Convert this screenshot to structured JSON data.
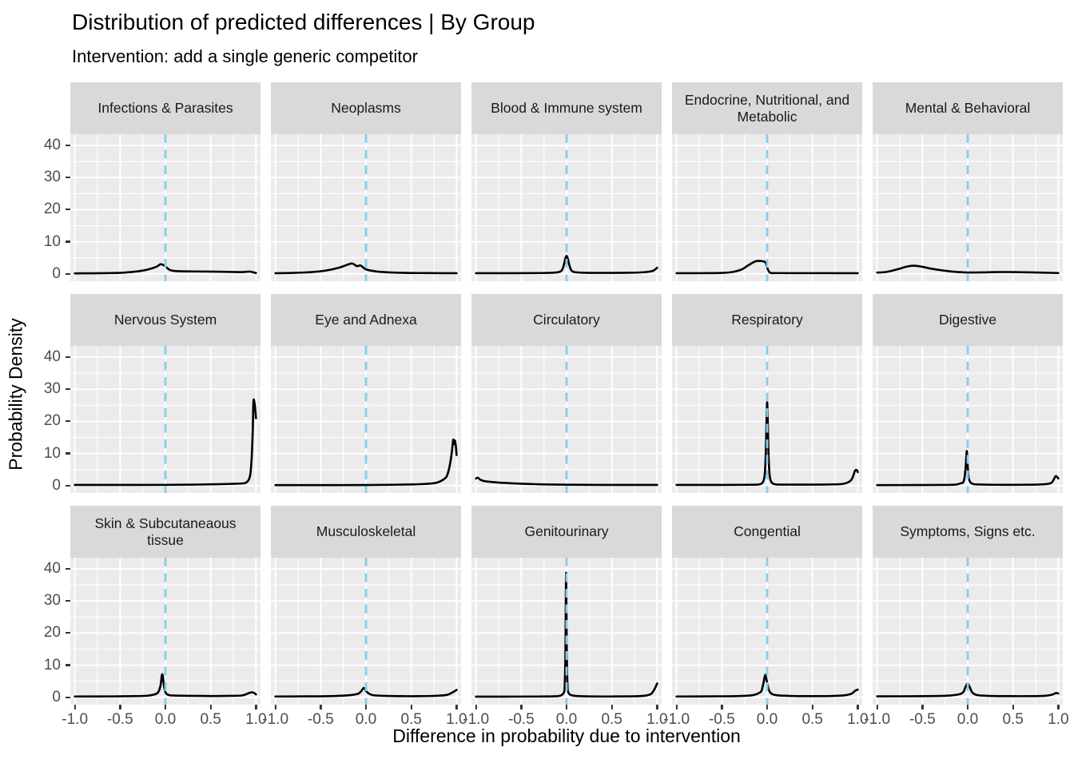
{
  "header": {
    "title": "Distribution of predicted differences | By Group",
    "subtitle": "Intervention: add a single generic competitor"
  },
  "axes": {
    "x_label": "Difference in probability due to intervention",
    "y_label": "Probability Density",
    "x_tick_labels": [
      "-1.0",
      "-0.5",
      "0.0",
      "0.5",
      "1.0"
    ],
    "y_tick_labels": [
      "0",
      "10",
      "20",
      "30",
      "40"
    ]
  },
  "colors": {
    "panel_bg": "#EBEBEB",
    "strip_bg": "#D9D9D9",
    "grid": "#FFFFFF",
    "curve": "#000000",
    "vline": "#87CEEB",
    "tick_label": "#4D4D4D",
    "strip_text": "#1A1A1A"
  },
  "chart_data": {
    "type": "line",
    "subtype": "faceted-density",
    "grid": "on",
    "x_domain": [
      -1.05,
      1.05
    ],
    "y_domain": [
      -2.3,
      43.5
    ],
    "x_major": [
      -1,
      -0.5,
      0,
      0.5,
      1
    ],
    "x_minor": [
      -0.75,
      -0.25,
      0.25,
      0.75
    ],
    "y_major": [
      0,
      10,
      20,
      30,
      40
    ],
    "y_minor": [
      5,
      15,
      25,
      35
    ],
    "vline_x": 0,
    "xlabel": "Difference in probability due to intervention",
    "ylabel": "Probability Density",
    "facets": [
      {
        "label": "Infections & Parasites",
        "points": [
          [
            -1,
            0.15
          ],
          [
            -0.8,
            0.18
          ],
          [
            -0.6,
            0.25
          ],
          [
            -0.45,
            0.4
          ],
          [
            -0.3,
            0.8
          ],
          [
            -0.2,
            1.3
          ],
          [
            -0.1,
            2.2
          ],
          [
            -0.05,
            3.0
          ],
          [
            0,
            2.3
          ],
          [
            0.05,
            1.2
          ],
          [
            0.12,
            0.85
          ],
          [
            0.3,
            0.75
          ],
          [
            0.5,
            0.7
          ],
          [
            0.7,
            0.6
          ],
          [
            0.85,
            0.55
          ],
          [
            0.93,
            0.7
          ],
          [
            1,
            0.25
          ]
        ]
      },
      {
        "label": "Neoplasms",
        "points": [
          [
            -1,
            0.2
          ],
          [
            -0.8,
            0.3
          ],
          [
            -0.6,
            0.55
          ],
          [
            -0.45,
            1.0
          ],
          [
            -0.3,
            1.9
          ],
          [
            -0.2,
            2.9
          ],
          [
            -0.15,
            3.2
          ],
          [
            -0.1,
            2.4
          ],
          [
            -0.06,
            2.6
          ],
          [
            0,
            1.4
          ],
          [
            0.1,
            0.8
          ],
          [
            0.2,
            0.55
          ],
          [
            0.35,
            0.35
          ],
          [
            0.6,
            0.25
          ],
          [
            0.8,
            0.22
          ],
          [
            1,
            0.2
          ]
        ]
      },
      {
        "label": "Blood & Immune system",
        "points": [
          [
            -1,
            0.2
          ],
          [
            -0.6,
            0.2
          ],
          [
            -0.3,
            0.25
          ],
          [
            -0.15,
            0.35
          ],
          [
            -0.08,
            0.6
          ],
          [
            -0.05,
            1.2
          ],
          [
            -0.03,
            2.8
          ],
          [
            -0.015,
            4.6
          ],
          [
            0,
            5.6
          ],
          [
            0.015,
            4.6
          ],
          [
            0.03,
            2.8
          ],
          [
            0.05,
            1.2
          ],
          [
            0.08,
            0.6
          ],
          [
            0.15,
            0.4
          ],
          [
            0.3,
            0.3
          ],
          [
            0.5,
            0.3
          ],
          [
            0.7,
            0.35
          ],
          [
            0.85,
            0.5
          ],
          [
            0.95,
            0.9
          ],
          [
            1,
            1.9
          ]
        ]
      },
      {
        "label": "Endocrine, Nutritional, and Metabolic",
        "points": [
          [
            -1,
            0.2
          ],
          [
            -0.7,
            0.22
          ],
          [
            -0.5,
            0.3
          ],
          [
            -0.38,
            0.6
          ],
          [
            -0.28,
            1.4
          ],
          [
            -0.2,
            2.8
          ],
          [
            -0.13,
            3.9
          ],
          [
            -0.07,
            4.0
          ],
          [
            -0.02,
            3.6
          ],
          [
            0,
            2.0
          ],
          [
            0.03,
            0.4
          ],
          [
            0.1,
            0.25
          ],
          [
            0.4,
            0.22
          ],
          [
            0.7,
            0.22
          ],
          [
            1,
            0.2
          ]
        ]
      },
      {
        "label": "Mental & Behavioral",
        "points": [
          [
            -1,
            0.4
          ],
          [
            -0.9,
            0.6
          ],
          [
            -0.78,
            1.4
          ],
          [
            -0.68,
            2.2
          ],
          [
            -0.6,
            2.55
          ],
          [
            -0.5,
            2.2
          ],
          [
            -0.4,
            1.6
          ],
          [
            -0.3,
            1.15
          ],
          [
            -0.2,
            0.8
          ],
          [
            -0.1,
            0.55
          ],
          [
            0,
            0.42
          ],
          [
            0.15,
            0.45
          ],
          [
            0.3,
            0.55
          ],
          [
            0.5,
            0.55
          ],
          [
            0.7,
            0.45
          ],
          [
            0.85,
            0.35
          ],
          [
            1,
            0.25
          ]
        ]
      },
      {
        "label": "Nervous System",
        "points": [
          [
            -1,
            0.2
          ],
          [
            -0.5,
            0.2
          ],
          [
            0,
            0.22
          ],
          [
            0.3,
            0.3
          ],
          [
            0.5,
            0.38
          ],
          [
            0.7,
            0.5
          ],
          [
            0.8,
            0.6
          ],
          [
            0.88,
            0.8
          ],
          [
            0.92,
            1.8
          ],
          [
            0.94,
            4
          ],
          [
            0.955,
            10
          ],
          [
            0.965,
            18
          ],
          [
            0.972,
            26.3
          ],
          [
            0.985,
            25.5
          ],
          [
            1,
            21
          ]
        ]
      },
      {
        "label": "Eye and Adnexa",
        "points": [
          [
            -1,
            0.15
          ],
          [
            -0.5,
            0.15
          ],
          [
            0,
            0.17
          ],
          [
            0.3,
            0.25
          ],
          [
            0.5,
            0.35
          ],
          [
            0.65,
            0.5
          ],
          [
            0.78,
            0.9
          ],
          [
            0.87,
            2.2
          ],
          [
            0.9,
            3.5
          ],
          [
            0.93,
            7
          ],
          [
            0.95,
            11
          ],
          [
            0.963,
            14.3
          ],
          [
            0.973,
            12.9
          ],
          [
            0.983,
            14.0
          ],
          [
            0.993,
            12
          ],
          [
            1,
            9.5
          ]
        ]
      },
      {
        "label": "Circulatory",
        "points": [
          [
            -1,
            2.2
          ],
          [
            -0.98,
            2.45
          ],
          [
            -0.95,
            1.8
          ],
          [
            -0.9,
            1.35
          ],
          [
            -0.8,
            1.05
          ],
          [
            -0.7,
            0.85
          ],
          [
            -0.6,
            0.7
          ],
          [
            -0.5,
            0.58
          ],
          [
            -0.4,
            0.48
          ],
          [
            -0.3,
            0.4
          ],
          [
            -0.2,
            0.34
          ],
          [
            -0.1,
            0.3
          ],
          [
            0,
            0.27
          ],
          [
            0.2,
            0.23
          ],
          [
            0.5,
            0.2
          ],
          [
            0.8,
            0.2
          ],
          [
            1,
            0.2
          ]
        ]
      },
      {
        "label": "Respiratory",
        "points": [
          [
            -1,
            0.2
          ],
          [
            -0.5,
            0.2
          ],
          [
            -0.2,
            0.25
          ],
          [
            -0.08,
            0.4
          ],
          [
            -0.04,
            1.5
          ],
          [
            -0.025,
            4
          ],
          [
            -0.015,
            10
          ],
          [
            -0.007,
            20
          ],
          [
            0,
            26
          ],
          [
            0.007,
            20
          ],
          [
            0.015,
            10
          ],
          [
            0.025,
            4
          ],
          [
            0.04,
            1.5
          ],
          [
            0.08,
            0.45
          ],
          [
            0.2,
            0.3
          ],
          [
            0.5,
            0.3
          ],
          [
            0.7,
            0.35
          ],
          [
            0.85,
            0.6
          ],
          [
            0.93,
            1.8
          ],
          [
            0.97,
            4.6
          ],
          [
            0.99,
            4.8
          ],
          [
            1,
            4.2
          ]
        ]
      },
      {
        "label": "Digestive",
        "points": [
          [
            -1,
            0.15
          ],
          [
            -0.5,
            0.17
          ],
          [
            -0.2,
            0.22
          ],
          [
            -0.12,
            0.35
          ],
          [
            -0.07,
            0.8
          ],
          [
            -0.05,
            1.0
          ],
          [
            -0.035,
            2.5
          ],
          [
            -0.022,
            6
          ],
          [
            -0.01,
            10.8
          ],
          [
            0.0,
            6
          ],
          [
            0.01,
            2.5
          ],
          [
            0.03,
            1.0
          ],
          [
            0.06,
            0.5
          ],
          [
            0.1,
            0.35
          ],
          [
            0.3,
            0.25
          ],
          [
            0.6,
            0.25
          ],
          [
            0.8,
            0.35
          ],
          [
            0.92,
            0.8
          ],
          [
            0.97,
            2.9
          ],
          [
            1,
            2.2
          ]
        ]
      },
      {
        "label": "Skin & Subcutaneaous tissue",
        "points": [
          [
            -1,
            0.25
          ],
          [
            -0.6,
            0.28
          ],
          [
            -0.35,
            0.35
          ],
          [
            -0.2,
            0.5
          ],
          [
            -0.12,
            0.9
          ],
          [
            -0.08,
            1.6
          ],
          [
            -0.055,
            3.5
          ],
          [
            -0.035,
            7.2
          ],
          [
            -0.015,
            3.5
          ],
          [
            0.005,
            1.3
          ],
          [
            0.04,
            0.7
          ],
          [
            0.1,
            0.55
          ],
          [
            0.3,
            0.45
          ],
          [
            0.5,
            0.4
          ],
          [
            0.7,
            0.45
          ],
          [
            0.85,
            0.6
          ],
          [
            0.93,
            1.4
          ],
          [
            0.97,
            1.5
          ],
          [
            1,
            0.9
          ]
        ]
      },
      {
        "label": "Musculoskeletal",
        "points": [
          [
            -1,
            0.25
          ],
          [
            -0.6,
            0.3
          ],
          [
            -0.35,
            0.4
          ],
          [
            -0.2,
            0.6
          ],
          [
            -0.12,
            0.9
          ],
          [
            -0.08,
            1.2
          ],
          [
            -0.05,
            2.0
          ],
          [
            -0.025,
            2.9
          ],
          [
            0,
            2.0
          ],
          [
            0.03,
            1.2
          ],
          [
            0.08,
            0.65
          ],
          [
            0.2,
            0.45
          ],
          [
            0.4,
            0.35
          ],
          [
            0.6,
            0.35
          ],
          [
            0.8,
            0.5
          ],
          [
            0.9,
            0.8
          ],
          [
            0.96,
            1.6
          ],
          [
            1,
            2.3
          ]
        ]
      },
      {
        "label": "Genitourinary",
        "points": [
          [
            -1,
            0.2
          ],
          [
            -0.6,
            0.22
          ],
          [
            -0.3,
            0.25
          ],
          [
            -0.15,
            0.3
          ],
          [
            -0.07,
            0.5
          ],
          [
            -0.03,
            1.5
          ],
          [
            -0.02,
            4
          ],
          [
            -0.012,
            15
          ],
          [
            -0.005,
            38.8
          ],
          [
            0.002,
            15
          ],
          [
            0.01,
            4
          ],
          [
            0.02,
            1.5
          ],
          [
            0.06,
            0.6
          ],
          [
            0.15,
            0.35
          ],
          [
            0.4,
            0.25
          ],
          [
            0.7,
            0.3
          ],
          [
            0.85,
            0.45
          ],
          [
            0.93,
            1.0
          ],
          [
            0.97,
            2.5
          ],
          [
            1,
            4.3
          ]
        ]
      },
      {
        "label": "Congential",
        "points": [
          [
            -1,
            0.25
          ],
          [
            -0.6,
            0.3
          ],
          [
            -0.3,
            0.4
          ],
          [
            -0.15,
            0.7
          ],
          [
            -0.08,
            1.5
          ],
          [
            -0.06,
            2.2
          ],
          [
            -0.04,
            4.5
          ],
          [
            -0.02,
            7.0
          ],
          [
            0.0,
            4.5
          ],
          [
            0.02,
            2.2
          ],
          [
            0.05,
            1.1
          ],
          [
            0.12,
            0.6
          ],
          [
            0.3,
            0.4
          ],
          [
            0.5,
            0.35
          ],
          [
            0.7,
            0.4
          ],
          [
            0.85,
            0.6
          ],
          [
            0.93,
            1.1
          ],
          [
            0.97,
            2.0
          ],
          [
            1,
            2.4
          ]
        ]
      },
      {
        "label": "Symptoms, Signs etc.",
        "points": [
          [
            -1,
            0.3
          ],
          [
            -0.6,
            0.33
          ],
          [
            -0.35,
            0.4
          ],
          [
            -0.2,
            0.55
          ],
          [
            -0.1,
            0.9
          ],
          [
            -0.05,
            1.6
          ],
          [
            -0.025,
            3.2
          ],
          [
            0,
            4.3
          ],
          [
            0.025,
            3.0
          ],
          [
            0.05,
            1.5
          ],
          [
            0.09,
            0.8
          ],
          [
            0.15,
            0.55
          ],
          [
            0.3,
            0.4
          ],
          [
            0.5,
            0.35
          ],
          [
            0.7,
            0.35
          ],
          [
            0.85,
            0.45
          ],
          [
            0.93,
            0.8
          ],
          [
            0.97,
            1.3
          ],
          [
            1,
            1.2
          ]
        ]
      }
    ]
  }
}
